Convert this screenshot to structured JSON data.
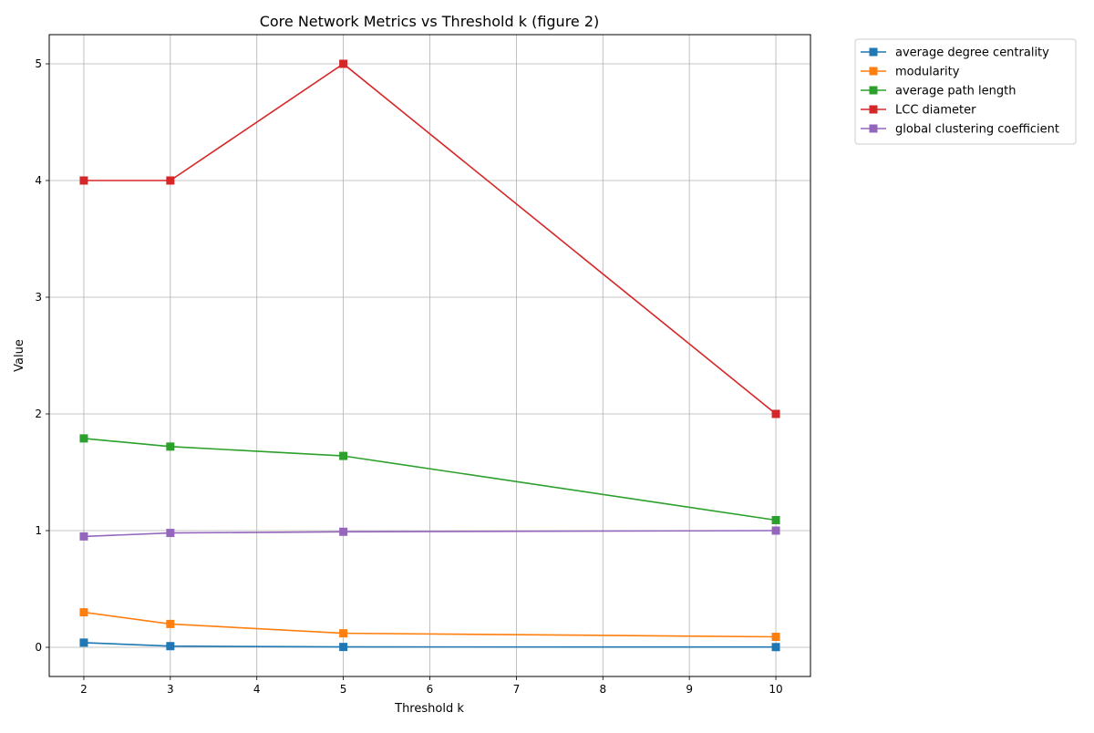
{
  "chart_data": {
    "type": "line",
    "title": "Core Network Metrics vs Threshold k (figure 2)",
    "xlabel": "Threshold k",
    "ylabel": "Value",
    "x": [
      2,
      3,
      5,
      10
    ],
    "xlim": [
      1.6,
      10.4
    ],
    "ylim": [
      -0.25,
      5.25
    ],
    "xticks": [
      2,
      3,
      4,
      5,
      6,
      7,
      8,
      9,
      10
    ],
    "yticks": [
      0,
      1,
      2,
      3,
      4,
      5
    ],
    "grid": true,
    "legend_position": "outside upper right",
    "marker": "square",
    "series": [
      {
        "name": "average degree centrality",
        "color": "#1f77b4",
        "values": [
          0.04,
          0.01,
          0.003,
          0.002
        ]
      },
      {
        "name": "modularity",
        "color": "#ff7f0e",
        "values": [
          0.3,
          0.2,
          0.12,
          0.09
        ]
      },
      {
        "name": "average path length",
        "color": "#2ca02c",
        "values": [
          1.79,
          1.72,
          1.64,
          1.09
        ]
      },
      {
        "name": "LCC diameter",
        "color": "#d62728",
        "values": [
          4,
          4,
          5,
          2
        ]
      },
      {
        "name": "global clustering coefficient",
        "color": "#9467bd",
        "values": [
          0.95,
          0.98,
          0.99,
          1.0
        ]
      }
    ]
  }
}
